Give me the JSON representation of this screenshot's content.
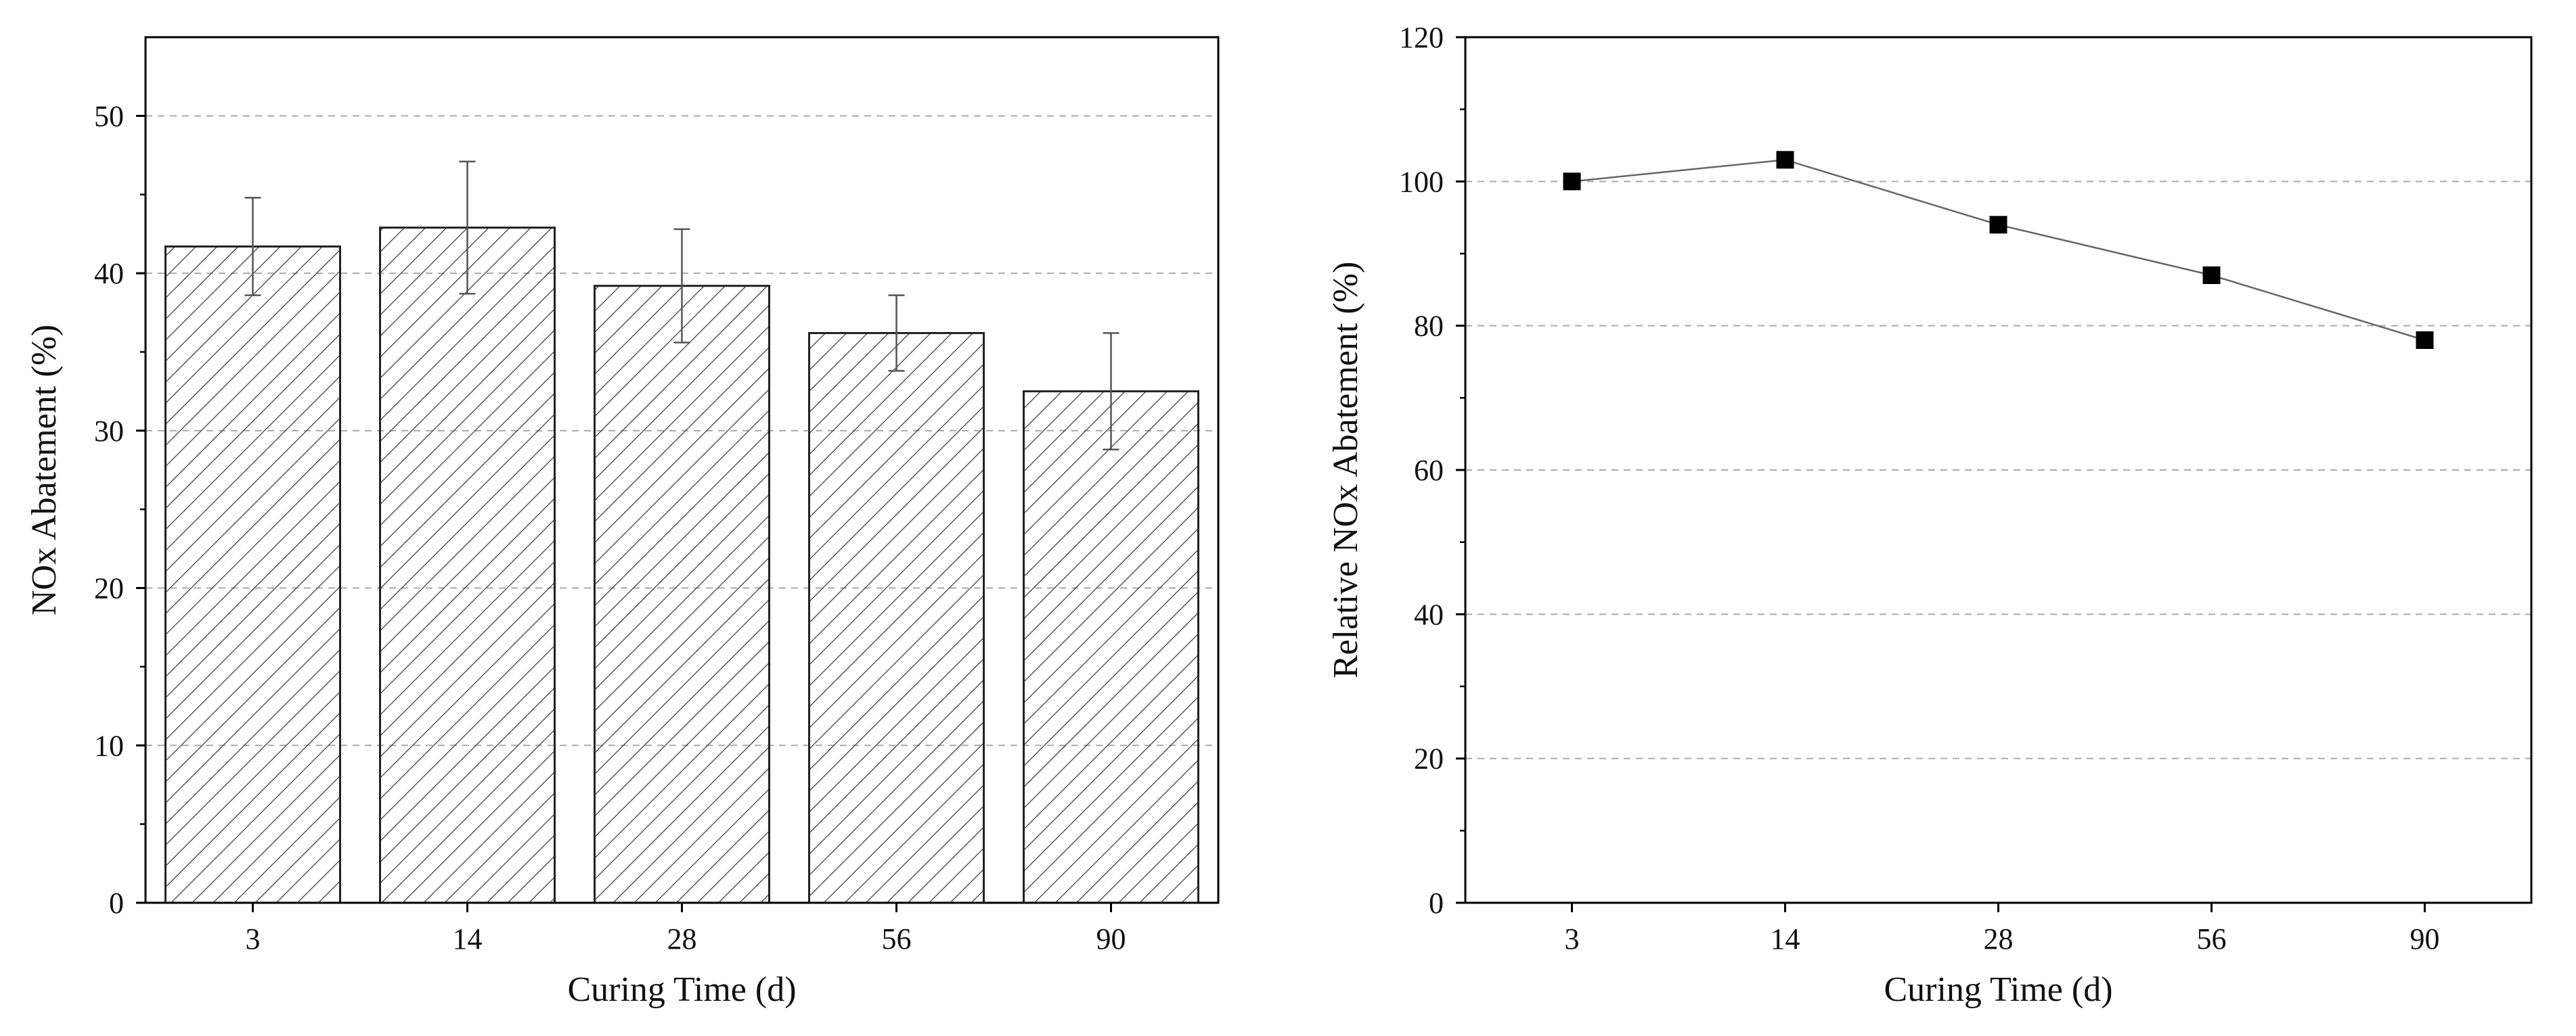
{
  "chart_data": [
    {
      "type": "bar",
      "title": "",
      "xlabel": "Curing Time (d)",
      "ylabel": "NOx Abatement (%)",
      "categories": [
        "3",
        "14",
        "28",
        "56",
        "90"
      ],
      "values": [
        41.7,
        42.9,
        39.2,
        36.2,
        32.5
      ],
      "error_high": [
        44.8,
        47.1,
        42.8,
        38.6,
        36.2
      ],
      "error_low": [
        38.6,
        38.7,
        35.6,
        33.8,
        28.8
      ],
      "ylim": [
        0,
        55
      ],
      "yticks": [
        "0",
        "10",
        "20",
        "30",
        "40",
        "50"
      ],
      "ytick_values": [
        0,
        10,
        20,
        30,
        40,
        50
      ],
      "grid": true,
      "bar_fill": "hatched",
      "colors": {
        "bar_stroke": "#222222",
        "hatch": "#333333",
        "grid": "#aaaaaa",
        "error_bar": "#555555"
      }
    },
    {
      "type": "line",
      "title": "",
      "xlabel": "Curing Time (d)",
      "ylabel": "Relative NOx Abatement (%)",
      "categories": [
        "3",
        "14",
        "28",
        "56",
        "90"
      ],
      "values": [
        100,
        103,
        94,
        87,
        78
      ],
      "ylim": [
        0,
        120
      ],
      "yticks": [
        "0",
        "20",
        "40",
        "60",
        "80",
        "100",
        "120"
      ],
      "ytick_values": [
        0,
        20,
        40,
        60,
        80,
        100,
        120
      ],
      "grid": true,
      "marker": "square",
      "colors": {
        "line": "#666666",
        "marker": "#000000",
        "grid": "#aaaaaa"
      }
    }
  ]
}
